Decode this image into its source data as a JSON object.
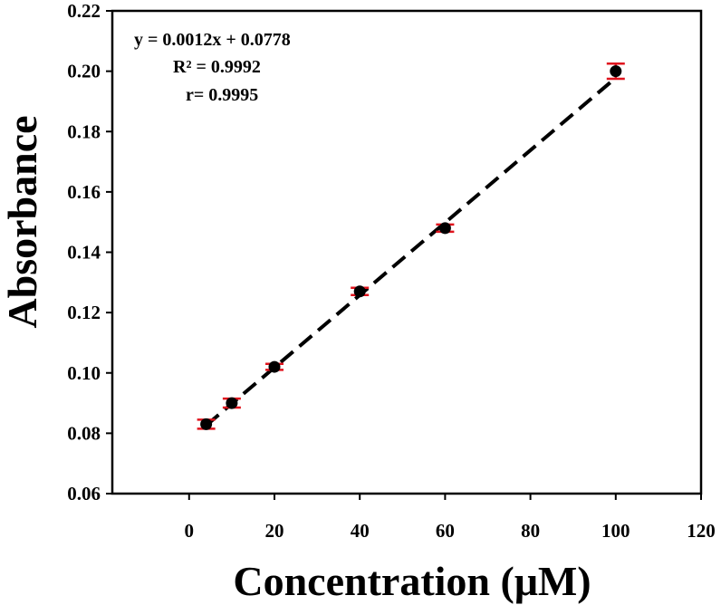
{
  "chart_data": {
    "type": "scatter",
    "title": "",
    "xlabel": "Concentration (μM)",
    "ylabel": "Absorbance",
    "xlim": [
      -18,
      120
    ],
    "ylim": [
      0.06,
      0.22
    ],
    "xticks": [
      0,
      20,
      40,
      60,
      80,
      100,
      120
    ],
    "xtick_labels": [
      "0",
      "20",
      "40",
      "60",
      "80",
      "100",
      "120"
    ],
    "yticks": [
      0.06,
      0.08,
      0.1,
      0.12,
      0.14,
      0.16,
      0.18,
      0.2,
      0.22
    ],
    "ytick_labels": [
      "0.06",
      "0.08",
      "0.10",
      "0.12",
      "0.14",
      "0.16",
      "0.18",
      "0.20",
      "0.22"
    ],
    "grid": false,
    "legend": "none",
    "series": [
      {
        "x": [
          4,
          10,
          20,
          40,
          60,
          100
        ],
        "y": [
          0.083,
          0.09,
          0.102,
          0.127,
          0.148,
          0.2
        ],
        "error": [
          0.0015,
          0.0015,
          0.001,
          0.0012,
          0.0012,
          0.0025
        ],
        "marker_color": "#000000",
        "error_color": "#e0141e"
      }
    ],
    "fit_line": {
      "x": [
        4,
        100
      ],
      "y": [
        0.0826,
        0.1978
      ],
      "style": "dashed",
      "color": "#000000"
    },
    "annotations": [
      "y = 0.0012x + 0.0778",
      "R² = 0.9992",
      "r= 0.9995"
    ]
  }
}
